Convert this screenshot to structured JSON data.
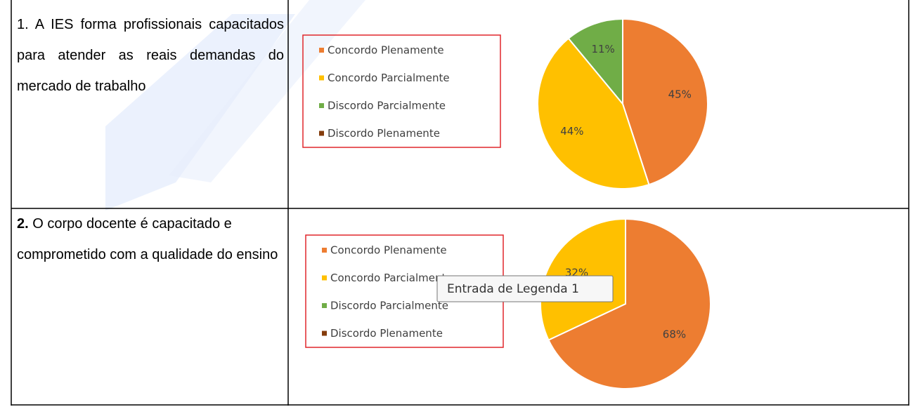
{
  "rows": [
    {
      "number": "1.",
      "text": "A IES forma profissionais capacitados para atender as reais demandas do mercado de trabalho",
      "chart": {
        "type": "pie",
        "categories": [
          "Concordo Plenamente",
          "Concordo Parcialmente",
          "Discordo Parcialmente",
          "Discordo Plenamente"
        ],
        "values": [
          45,
          44,
          11,
          0
        ],
        "value_labels": [
          "45%",
          "44%",
          "11%",
          null
        ],
        "colors": [
          "#ED7D31",
          "#FFC000",
          "#70AD47",
          "#843C0C"
        ]
      }
    },
    {
      "number": "2.",
      "text": "O corpo docente é capacitado e comprometido com a qualidade do ensino",
      "chart": {
        "type": "pie",
        "categories": [
          "Concordo Plenamente",
          "Concordo Parcialmente",
          "Discordo Parcialmente",
          "Discordo Plenamente"
        ],
        "values": [
          68,
          32,
          0,
          0
        ],
        "value_labels": [
          "68%",
          "32%",
          null,
          null
        ],
        "colors": [
          "#ED7D31",
          "#FFC000",
          "#70AD47",
          "#843C0C"
        ],
        "tooltip": "Entrada de Legenda 1"
      }
    }
  ]
}
